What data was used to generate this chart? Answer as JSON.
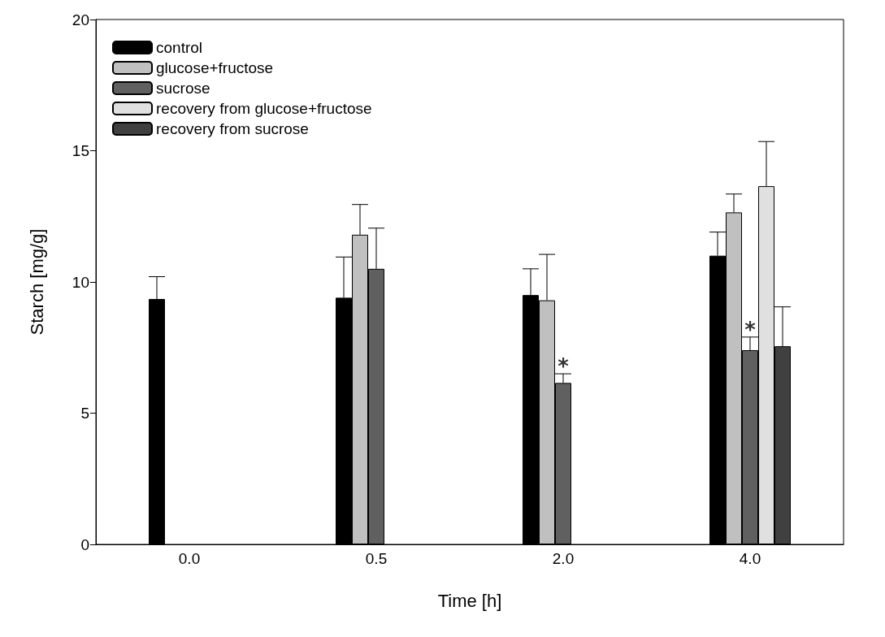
{
  "chart_data": {
    "type": "bar",
    "xlabel": "Time [h]",
    "ylabel": "Starch [mg/g]",
    "categories": [
      "0.0",
      "0.5",
      "2.0",
      "4.0"
    ],
    "series": [
      {
        "name": "control",
        "color": "#000000",
        "values": [
          9.35,
          9.4,
          9.5,
          11.0
        ],
        "errors": [
          [
            9.35,
            10.2
          ],
          [
            9.4,
            10.95
          ],
          [
            9.5,
            10.5
          ],
          [
            11.0,
            11.9
          ]
        ]
      },
      {
        "name": "glucose+fructose",
        "color": "#c0c0c0",
        "values": [
          null,
          11.8,
          9.3,
          12.65
        ],
        "errors": [
          null,
          [
            11.8,
            12.95
          ],
          [
            9.3,
            11.05
          ],
          [
            12.65,
            13.35
          ]
        ]
      },
      {
        "name": "sucrose",
        "color": "#606060",
        "values": [
          null,
          10.5,
          6.15,
          7.4
        ],
        "errors": [
          null,
          [
            10.5,
            12.05
          ],
          [
            6.15,
            6.5
          ],
          [
            7.4,
            7.9
          ]
        ]
      },
      {
        "name": "recovery from glucose+fructose",
        "color": "#e0e0e0",
        "values": [
          null,
          null,
          null,
          13.65
        ],
        "errors": [
          null,
          null,
          null,
          [
            13.65,
            15.35
          ]
        ]
      },
      {
        "name": "recovery from sucrose",
        "color": "#404040",
        "values": [
          null,
          null,
          null,
          7.55
        ],
        "errors": [
          null,
          null,
          null,
          [
            7.55,
            9.05
          ]
        ]
      }
    ],
    "ylim": [
      0,
      20
    ],
    "yticks": [
      0,
      5,
      10,
      15,
      20
    ],
    "grid": false,
    "legend": "top left",
    "annotations": [
      {
        "text": "*",
        "x": "2.0",
        "y": 6.5
      },
      {
        "text": "*",
        "x": "4.0",
        "y": 7.9
      }
    ]
  }
}
